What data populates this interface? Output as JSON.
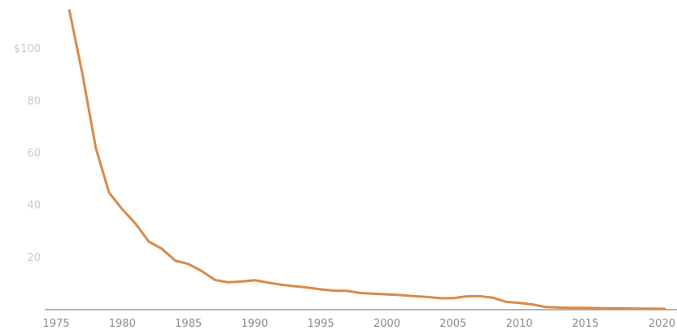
{
  "chart_data": {
    "type": "line",
    "title": "",
    "xlabel": "",
    "ylabel": "",
    "xlim": [
      1975,
      2021
    ],
    "ylim": [
      0,
      115
    ],
    "grid": false,
    "legend": "none",
    "x_ticks": [
      1975,
      1980,
      1985,
      1990,
      1995,
      2000,
      2005,
      2010,
      2015,
      2020
    ],
    "y_ticks": [
      {
        "value": 20,
        "label": "20"
      },
      {
        "value": 40,
        "label": "40"
      },
      {
        "value": 60,
        "label": "60"
      },
      {
        "value": 80,
        "label": "80"
      },
      {
        "value": 100,
        "label": "$100"
      }
    ],
    "series": [
      {
        "color": "#d88a4a",
        "x": [
          1976,
          1977,
          1978,
          1979,
          1980,
          1981,
          1982,
          1983,
          1984,
          1985,
          1986,
          1987,
          1988,
          1989,
          1990,
          1991,
          1992,
          1993,
          1994,
          1995,
          1996,
          1997,
          1998,
          1999,
          2000,
          2001,
          2002,
          2003,
          2004,
          2005,
          2006,
          2007,
          2008,
          2009,
          2010,
          2011,
          2012,
          2013,
          2014,
          2015,
          2016,
          2017,
          2018,
          2019,
          2020,
          2021
        ],
        "y": [
          114.8,
          90,
          62,
          44.9,
          38.5,
          33,
          26.1,
          23.3,
          18.8,
          17.5,
          14.8,
          11.4,
          10.5,
          10.8,
          11.3,
          10.4,
          9.6,
          9,
          8.5,
          7.8,
          7.3,
          7.2,
          6.4,
          6.1,
          5.9,
          5.6,
          5.2,
          4.9,
          4.4,
          4.4,
          5.1,
          5.2,
          4.6,
          3,
          2.6,
          2,
          1,
          0.8,
          0.7,
          0.7,
          0.6,
          0.5,
          0.5,
          0.4,
          0.4,
          0.3
        ]
      }
    ]
  }
}
